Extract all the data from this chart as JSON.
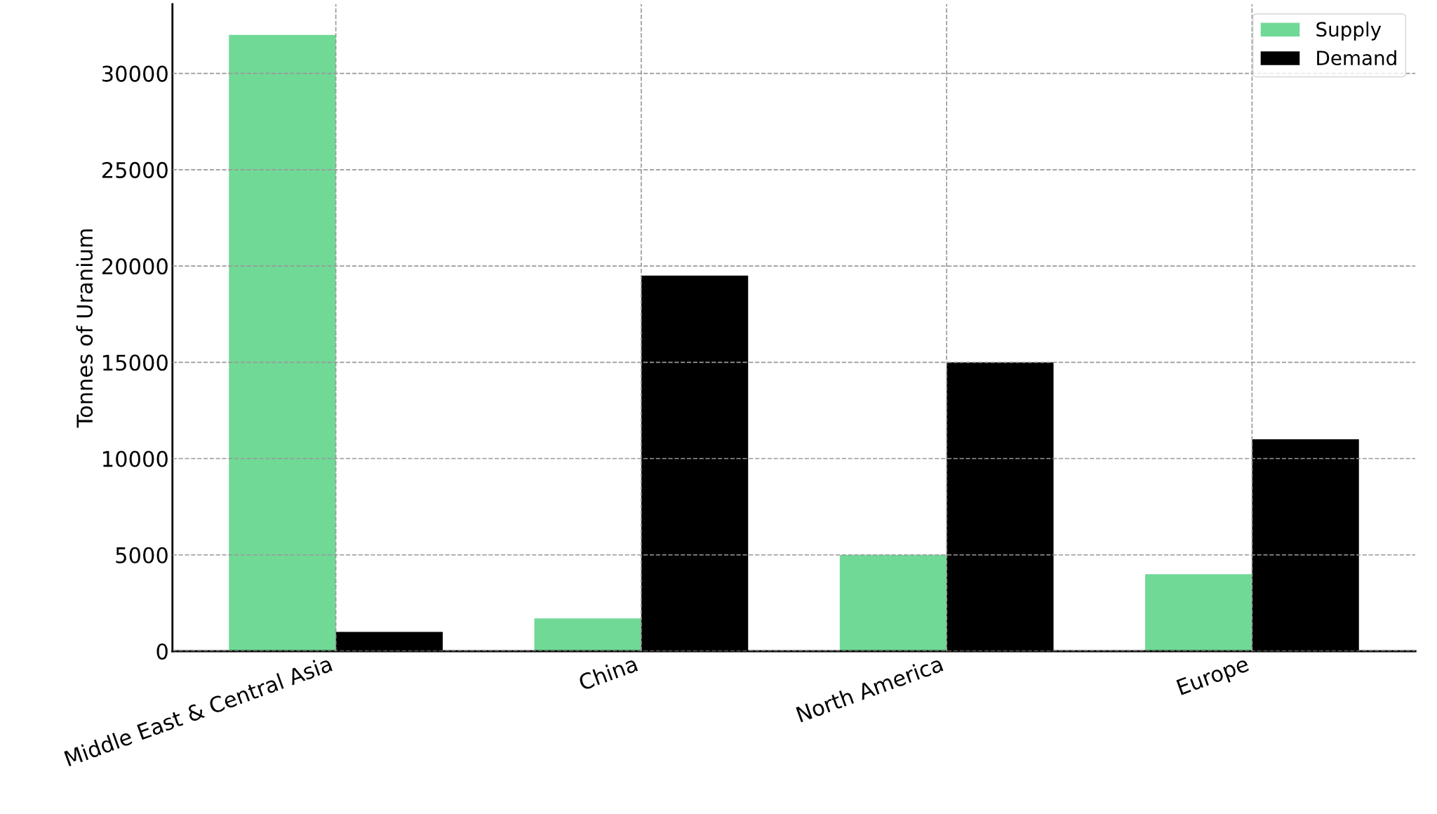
{
  "chart_data": {
    "type": "bar",
    "ylabel": "Tonnes of Uranium",
    "categories": [
      "Middle East & Central Asia",
      "China",
      "North America",
      "Europe"
    ],
    "series": [
      {
        "name": "Supply",
        "color": "#70d996",
        "values": [
          32000,
          1700,
          5000,
          4000
        ]
      },
      {
        "name": "Demand",
        "color": "#000000",
        "values": [
          1000,
          19500,
          15000,
          11000
        ]
      }
    ],
    "ylim": [
      0,
      33600
    ],
    "yticks": [
      0,
      5000,
      10000,
      15000,
      20000,
      25000,
      30000
    ],
    "grid": true,
    "legend": "top right"
  }
}
